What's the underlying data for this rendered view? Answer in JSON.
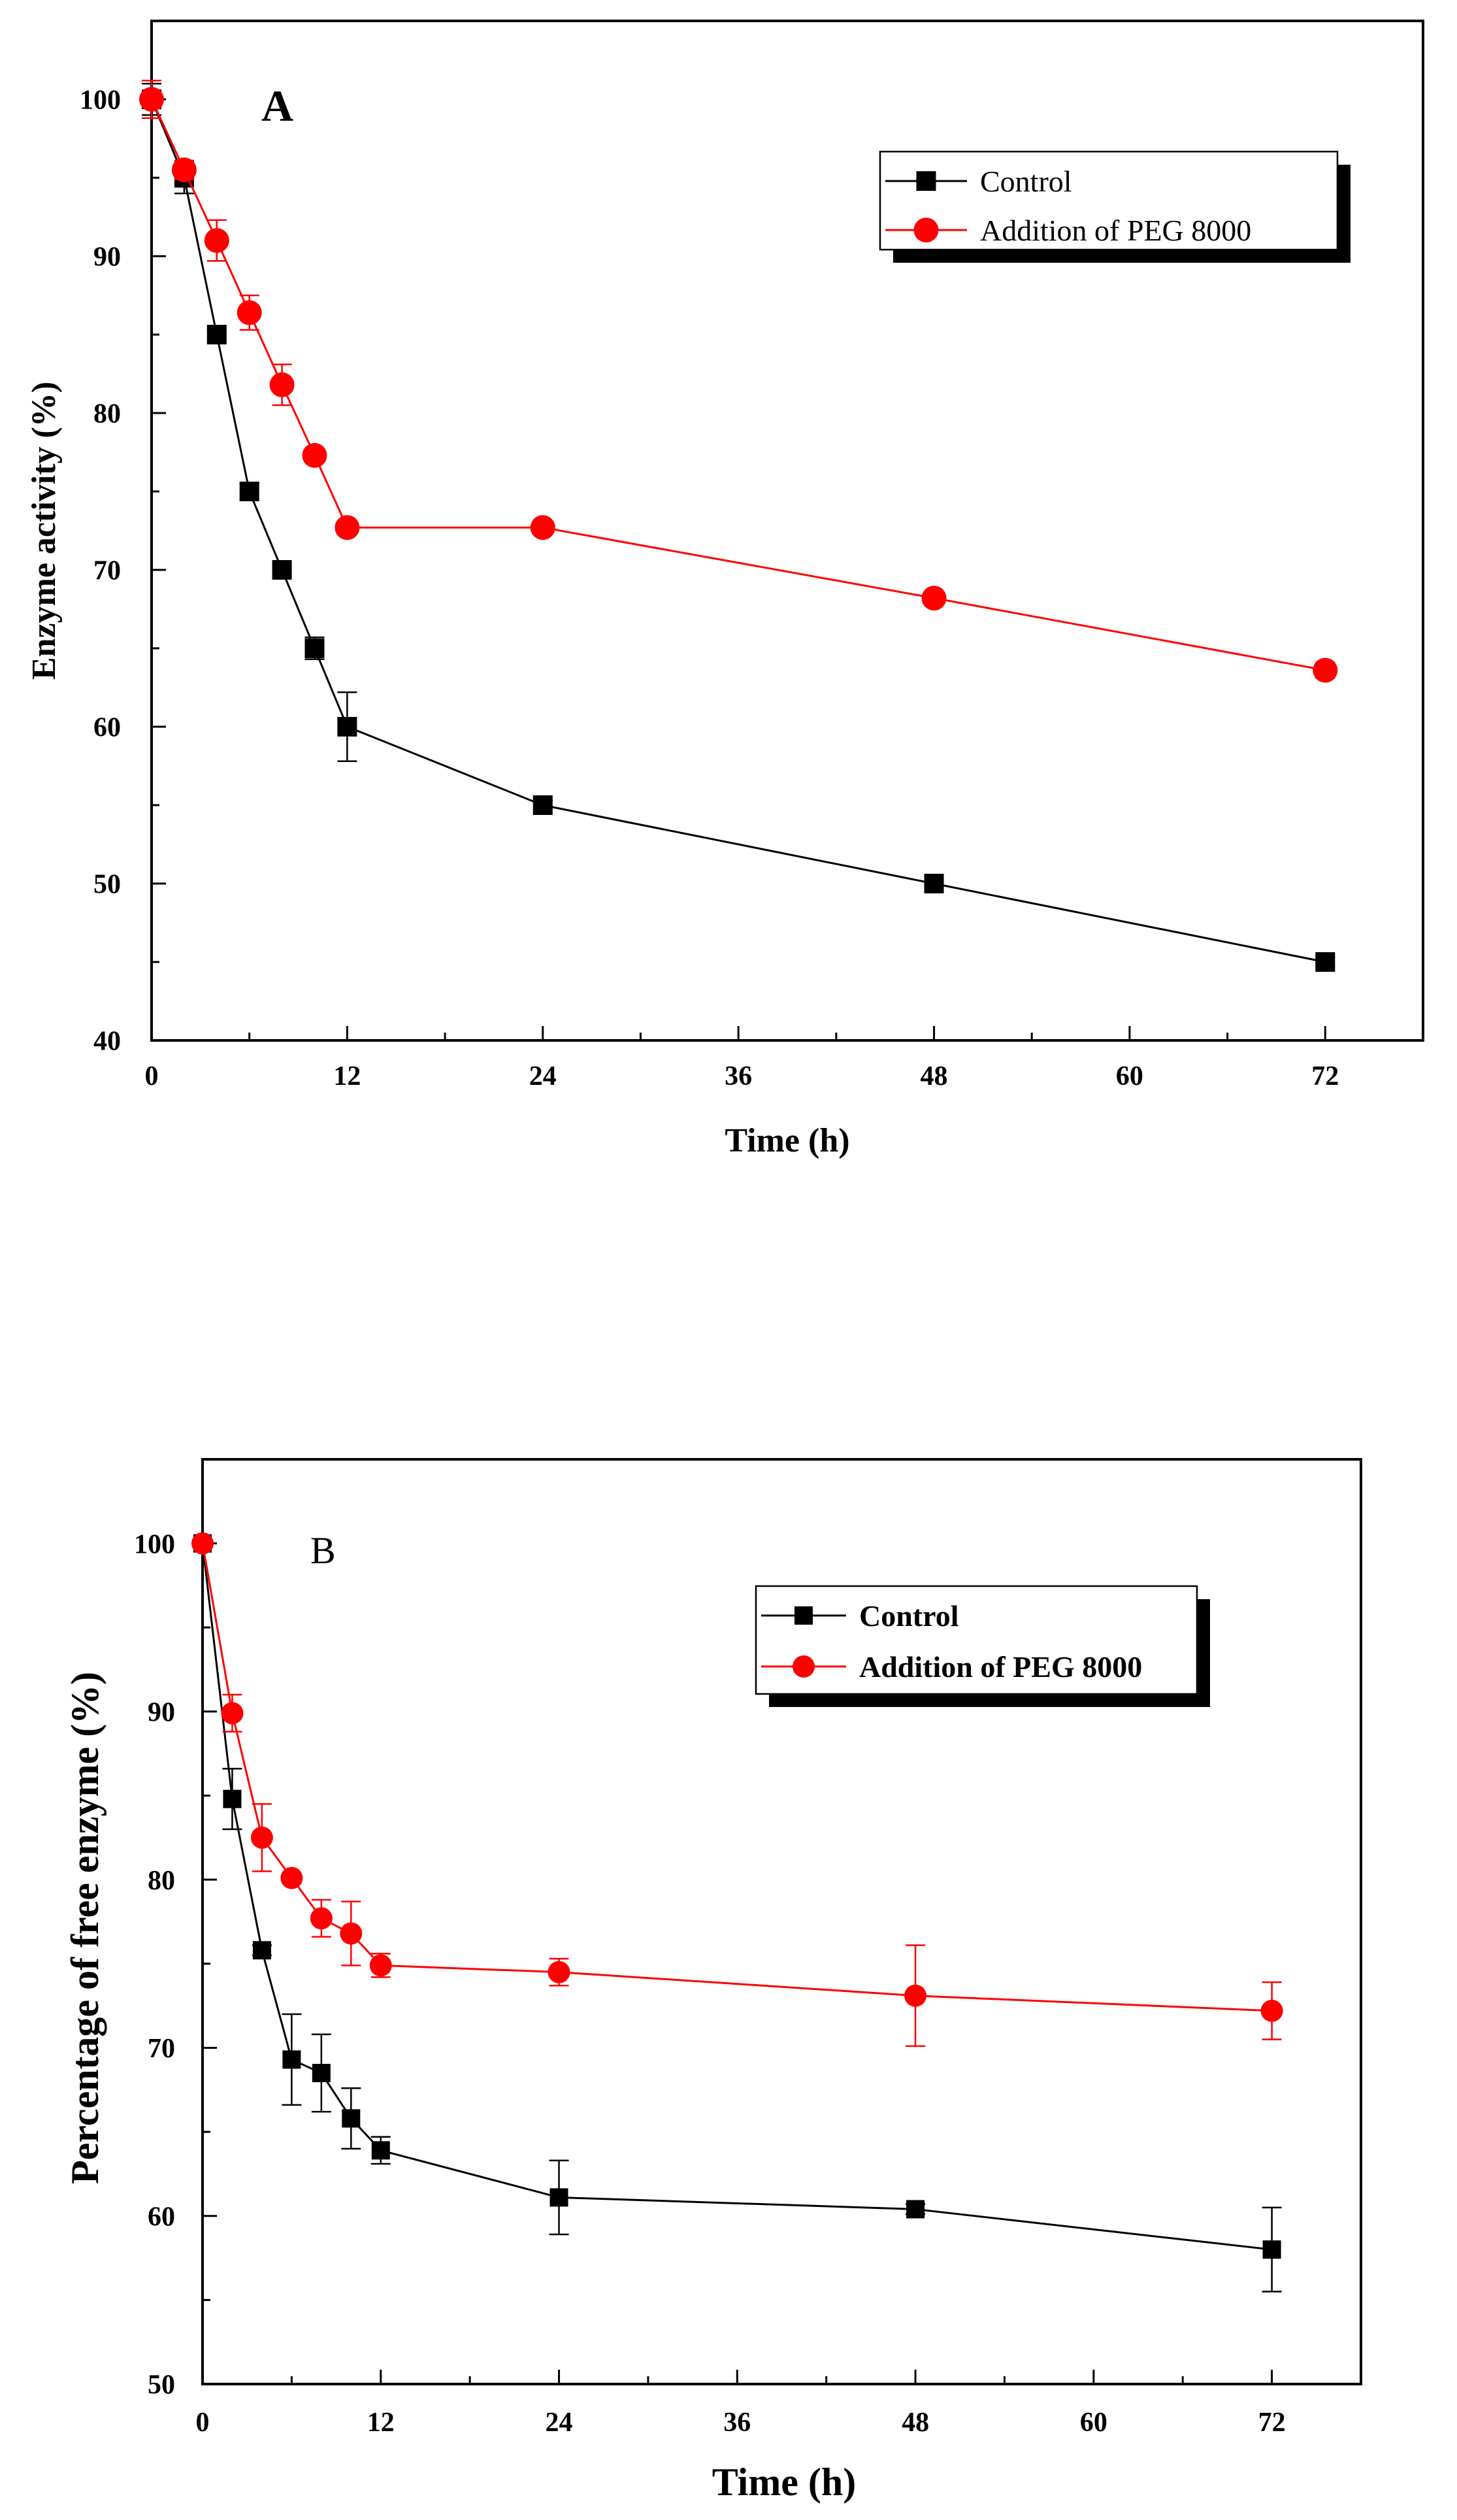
{
  "chart_data": [
    {
      "id": "A",
      "type": "line",
      "panel_label": "A",
      "title": "",
      "xlabel": "Time (h)",
      "ylabel": "Enzyme activity (%)",
      "xlim": [
        0,
        78
      ],
      "ylim": [
        40,
        105
      ],
      "xticks": [
        0,
        12,
        24,
        36,
        48,
        60,
        72
      ],
      "yticks": [
        40,
        50,
        60,
        70,
        80,
        90,
        100
      ],
      "legend_position": "top-right",
      "series": [
        {
          "name": "Control",
          "color": "#000000",
          "marker": "square",
          "x": [
            0,
            2,
            4,
            6,
            8,
            10,
            12,
            24,
            48,
            72
          ],
          "y": [
            100,
            95,
            85,
            75,
            70,
            65,
            60,
            55,
            50,
            45
          ],
          "err": [
            1,
            1,
            0.3,
            0.5,
            0.3,
            0.7,
            2.2,
            0.3,
            0.3,
            0.3
          ]
        },
        {
          "name": "Addition of PEG 8000",
          "color": "#ff0000",
          "marker": "circle",
          "x": [
            0,
            2,
            4,
            6,
            8,
            10,
            12,
            24,
            48,
            72
          ],
          "y": [
            100,
            95.5,
            91,
            86.4,
            81.8,
            77.3,
            72.7,
            72.7,
            68.2,
            63.6
          ],
          "err": [
            1.2,
            0.6,
            1.3,
            1.1,
            1.3,
            0.4,
            0.3,
            0.3,
            0.3,
            0.5
          ]
        }
      ]
    },
    {
      "id": "B",
      "type": "line",
      "panel_label": "B",
      "title": "",
      "xlabel": "Time (h)",
      "ylabel": "Percentage of free enzyme (%)",
      "xlim": [
        0,
        78
      ],
      "ylim": [
        50,
        105
      ],
      "xticks": [
        0,
        12,
        24,
        36,
        48,
        60,
        72
      ],
      "yticks": [
        50,
        60,
        70,
        80,
        90,
        100
      ],
      "legend_position": "top-right",
      "series": [
        {
          "name": "Control",
          "color": "#000000",
          "marker": "square",
          "x": [
            0,
            2,
            4,
            6,
            8,
            10,
            12,
            24,
            48,
            72
          ],
          "y": [
            100,
            84.8,
            75.8,
            69.3,
            68.5,
            65.8,
            63.9,
            61.1,
            60.4,
            58
          ],
          "err": [
            0,
            1.8,
            0.3,
            2.7,
            2.3,
            1.8,
            0.8,
            2.2,
            0.3,
            2.5
          ]
        },
        {
          "name": "Addition of PEG 8000",
          "color": "#ff0000",
          "marker": "circle",
          "x": [
            0,
            2,
            4,
            6,
            8,
            10,
            12,
            24,
            48,
            72
          ],
          "y": [
            100,
            89.9,
            82.5,
            80.1,
            77.7,
            76.8,
            74.9,
            74.5,
            73.1,
            72.2
          ],
          "err": [
            0,
            1.1,
            2,
            0.3,
            1.1,
            1.9,
            0.7,
            0.8,
            3,
            1.7
          ]
        }
      ]
    }
  ]
}
